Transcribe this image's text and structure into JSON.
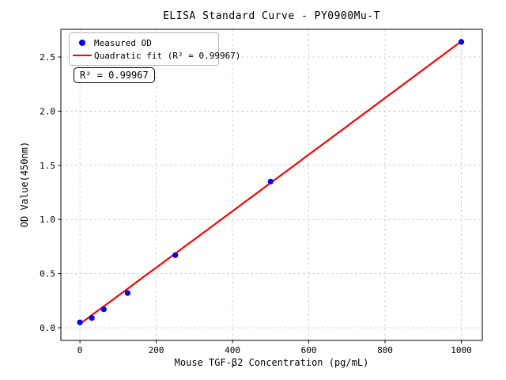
{
  "figure": {
    "title": "ELISA Standard Curve - PY0900Mu-T",
    "background": "#ffffff"
  },
  "annotation": {
    "text": "R² = 0.99967"
  },
  "legend": {
    "items": [
      {
        "label": "Measured OD",
        "marker": "dot",
        "color": "#0000ff"
      },
      {
        "label": "Quadratic fit (R² = 0.99967)",
        "marker": "line",
        "color": "#ff0000"
      }
    ]
  },
  "chart_data": {
    "type": "scatter",
    "title": "ELISA Standard Curve - PY0900Mu-T",
    "xlabel": "Mouse TGF-β2 Concentration (pg/mL)",
    "ylabel": "OD Value(450nm)",
    "xlim": [
      -50,
      1055
    ],
    "ylim": [
      -0.117,
      2.756
    ],
    "xticks": {
      "values": [
        0,
        200,
        400,
        600,
        800,
        1000
      ],
      "labels": [
        "0",
        "200",
        "400",
        "600",
        "800",
        "1000"
      ]
    },
    "yticks": {
      "values": [
        0,
        0.5,
        1.0,
        1.5,
        2.0,
        2.5
      ],
      "labels": [
        "0.0",
        "0.5",
        "1.0",
        "1.5",
        "2.0",
        "2.5"
      ]
    },
    "grid": {
      "show": true,
      "style": "dashed",
      "color": "#c9c9c9"
    },
    "legend_position": "upper-left",
    "series": [
      {
        "name": "Measured OD",
        "type": "scatter",
        "color": "#0000ff",
        "marker_radius": 3.6,
        "x": [
          0,
          31.25,
          62.5,
          125,
          250,
          500,
          1000
        ],
        "y": [
          0.05,
          0.09,
          0.17,
          0.32,
          0.67,
          1.35,
          2.64
        ]
      },
      {
        "name": "Quadratic fit (R² = 0.99967)",
        "type": "line",
        "color": "#ff0000",
        "line_width": 2.2,
        "fit": {
          "kind": "quadratic",
          "a": 0.035,
          "b": 0.0026,
          "c": 1e-08,
          "r_squared": 0.99967
        },
        "x_range": [
          0,
          1000
        ]
      }
    ],
    "annotation": "R² = 0.99967"
  }
}
